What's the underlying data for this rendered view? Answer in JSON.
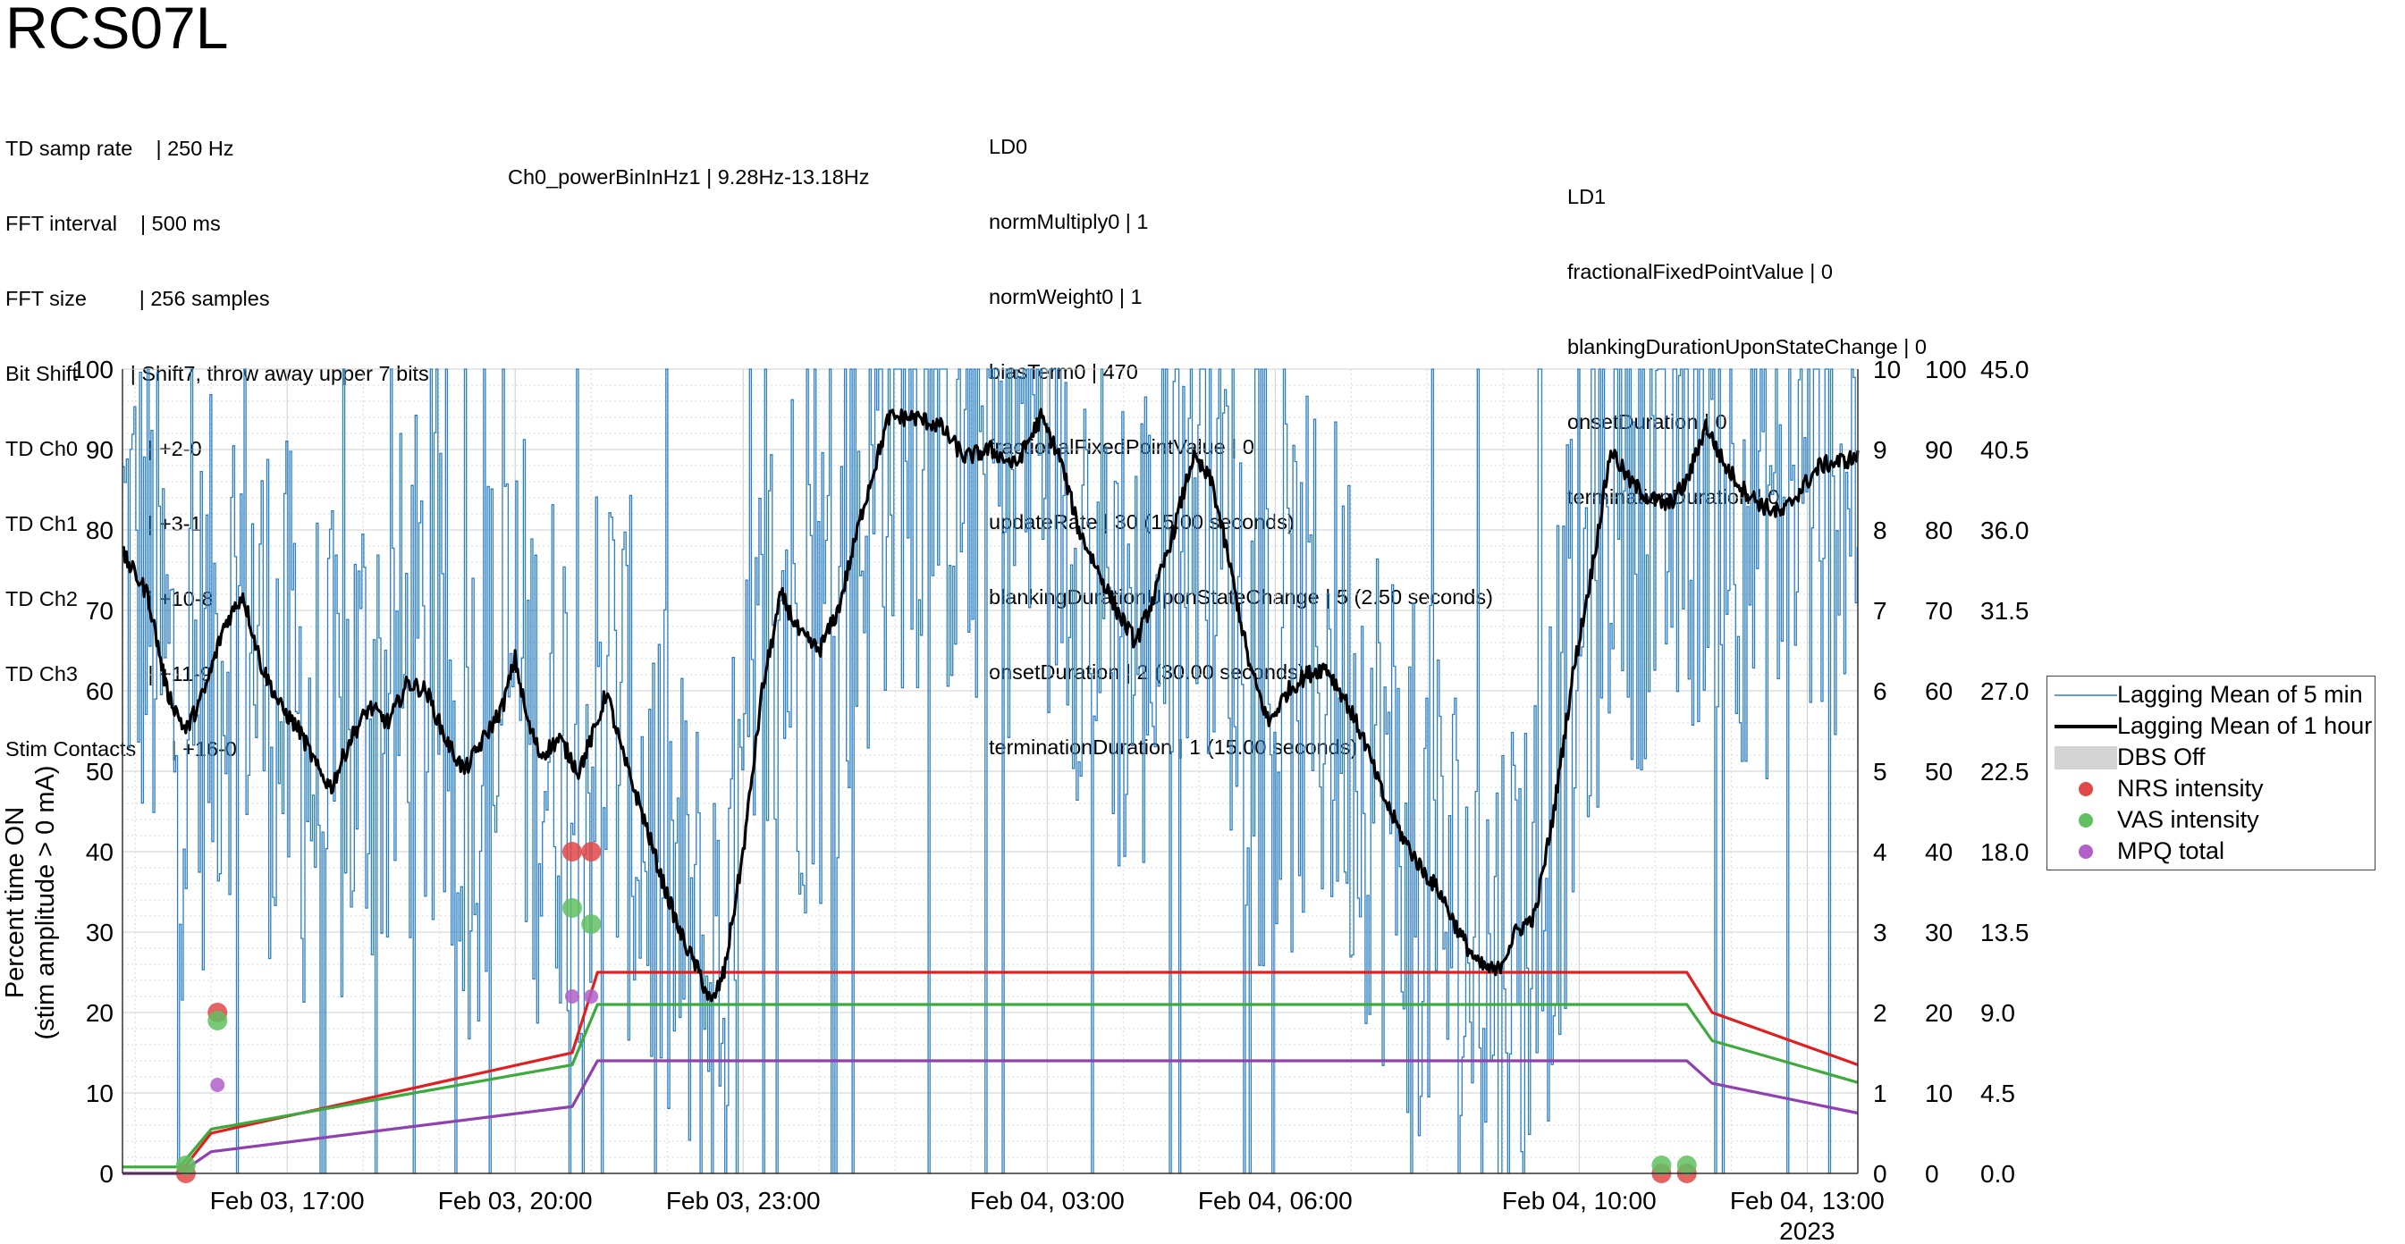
{
  "title": "RCS07L",
  "config_left": [
    "TD samp rate    | 250 Hz",
    "FFT interval    | 500 ms",
    "FFT size         | 256 samples",
    "Bit Shift         | Shift7, throw away upper 7 bits",
    "TD Ch0            | +2-0",
    "TD Ch1            | +3-1",
    "TD Ch2            | +10-8",
    "TD Ch3            | +11-9",
    "Stim Contacts      | +16-0"
  ],
  "config_mid": "Ch0_powerBinInHz1 | 9.28Hz-13.18Hz",
  "config_ld0": [
    "LD0",
    "normMultiply0 | 1",
    "normWeight0 | 1",
    "biasTerm0 | 470",
    "fractionalFixedPointValue | 0",
    "updateRate | 30 (15.00 seconds)",
    "blankingDurationUponStateChange | 5 (2.50 seconds)",
    "onsetDuration | 2 (30.00 seconds)",
    "terminationDuration | 1 (15.00 seconds)"
  ],
  "config_ld1": [
    "LD1",
    "fractionalFixedPointValue | 0",
    "blankingDurationUponStateChange | 0",
    "onsetDuration | 0",
    "terminationDuration | 0"
  ],
  "chart_data": {
    "type": "line",
    "ylabel": [
      "Percent time ON",
      "(stim amplitude > 0 mA)"
    ],
    "ylim": [
      0,
      100
    ],
    "y_ticks": [
      0,
      10,
      20,
      30,
      40,
      50,
      60,
      70,
      80,
      90,
      100
    ],
    "right_axes": [
      {
        "ylim": [
          0,
          10
        ],
        "ticks": [
          "0",
          "1",
          "2",
          "3",
          "4",
          "5",
          "6",
          "7",
          "8",
          "9",
          "10"
        ]
      },
      {
        "ylim": [
          0,
          100
        ],
        "ticks": [
          "0",
          "10",
          "20",
          "30",
          "40",
          "50",
          "60",
          "70",
          "80",
          "90",
          "100"
        ]
      },
      {
        "ylim": [
          0,
          45
        ],
        "ticks": [
          "0.0",
          "4.5",
          "9.0",
          "13.5",
          "18.0",
          "22.5",
          "27.0",
          "31.5",
          "36.0",
          "40.5",
          "45.0"
        ]
      }
    ],
    "xlim": [
      "2023-02-03 14:50",
      "2023-02-04 13:40"
    ],
    "x_ticks": [
      {
        "t": "2023-02-03 17:00",
        "label": "Feb 03, 17:00"
      },
      {
        "t": "2023-02-03 20:00",
        "label": "Feb 03, 20:00"
      },
      {
        "t": "2023-02-03 23:00",
        "label": "Feb 03, 23:00"
      },
      {
        "t": "2023-02-04 03:00",
        "label": "Feb 04, 03:00"
      },
      {
        "t": "2023-02-04 06:00",
        "label": "Feb 04, 06:00"
      },
      {
        "t": "2023-02-04 10:00",
        "label": "Feb 04, 10:00"
      },
      {
        "t": "2023-02-04 13:00",
        "label": "Feb 04, 13:00"
      }
    ],
    "year_label": "2023",
    "grid": true,
    "legend_position": "right",
    "series": [
      {
        "name": "Lagging Mean of 1 hour",
        "color": "#000000",
        "points": [
          [
            "2023-02-03 14:50",
            77
          ],
          [
            "2023-02-03 15:10",
            72
          ],
          [
            "2023-02-03 15:25",
            60
          ],
          [
            "2023-02-03 15:40",
            55
          ],
          [
            "2023-02-03 15:55",
            60
          ],
          [
            "2023-02-03 16:10",
            68
          ],
          [
            "2023-02-03 16:25",
            72
          ],
          [
            "2023-02-03 16:40",
            63
          ],
          [
            "2023-02-03 16:55",
            58
          ],
          [
            "2023-02-03 17:10",
            55
          ],
          [
            "2023-02-03 17:25",
            50
          ],
          [
            "2023-02-03 17:35",
            48
          ],
          [
            "2023-02-03 17:50",
            54
          ],
          [
            "2023-02-03 18:05",
            58
          ],
          [
            "2023-02-03 18:20",
            56
          ],
          [
            "2023-02-03 18:35",
            61
          ],
          [
            "2023-02-03 18:50",
            60
          ],
          [
            "2023-02-03 19:05",
            54
          ],
          [
            "2023-02-03 19:20",
            50
          ],
          [
            "2023-02-03 19:35",
            54
          ],
          [
            "2023-02-03 19:50",
            58
          ],
          [
            "2023-02-03 20:00",
            64
          ],
          [
            "2023-02-03 20:10",
            56
          ],
          [
            "2023-02-03 20:20",
            52
          ],
          [
            "2023-02-03 20:35",
            54
          ],
          [
            "2023-02-03 20:50",
            50
          ],
          [
            "2023-02-03 21:05",
            56
          ],
          [
            "2023-02-03 21:12",
            60
          ],
          [
            "2023-02-03 21:25",
            52
          ],
          [
            "2023-02-03 21:40",
            45
          ],
          [
            "2023-02-03 21:55",
            37
          ],
          [
            "2023-02-03 22:10",
            30
          ],
          [
            "2023-02-03 22:25",
            25
          ],
          [
            "2023-02-03 22:35",
            21
          ],
          [
            "2023-02-03 22:45",
            25
          ],
          [
            "2023-02-03 23:00",
            40
          ],
          [
            "2023-02-03 23:15",
            60
          ],
          [
            "2023-02-03 23:30",
            72
          ],
          [
            "2023-02-03 23:45",
            67
          ],
          [
            "2023-02-04 00:00",
            65
          ],
          [
            "2023-02-04 00:15",
            70
          ],
          [
            "2023-02-04 00:35",
            83
          ],
          [
            "2023-02-04 00:55",
            94
          ],
          [
            "2023-02-04 01:15",
            94
          ],
          [
            "2023-02-04 01:35",
            93
          ],
          [
            "2023-02-04 01:55",
            89
          ],
          [
            "2023-02-04 02:15",
            90
          ],
          [
            "2023-02-04 02:35",
            88
          ],
          [
            "2023-02-04 02:55",
            94
          ],
          [
            "2023-02-04 03:10",
            89
          ],
          [
            "2023-02-04 03:25",
            80
          ],
          [
            "2023-02-04 03:40",
            75
          ],
          [
            "2023-02-04 03:55",
            70
          ],
          [
            "2023-02-04 04:10",
            66
          ],
          [
            "2023-02-04 04:25",
            72
          ],
          [
            "2023-02-04 04:40",
            80
          ],
          [
            "2023-02-04 04:55",
            89
          ],
          [
            "2023-02-04 05:10",
            86
          ],
          [
            "2023-02-04 05:25",
            75
          ],
          [
            "2023-02-04 05:40",
            63
          ],
          [
            "2023-02-04 05:55",
            56
          ],
          [
            "2023-02-04 06:10",
            60
          ],
          [
            "2023-02-04 06:25",
            62
          ],
          [
            "2023-02-04 06:40",
            63
          ],
          [
            "2023-02-04 06:55",
            59
          ],
          [
            "2023-02-04 07:10",
            54
          ],
          [
            "2023-02-04 07:25",
            47
          ],
          [
            "2023-02-04 07:40",
            42
          ],
          [
            "2023-02-04 07:55",
            38
          ],
          [
            "2023-02-04 08:10",
            35
          ],
          [
            "2023-02-04 08:25",
            30
          ],
          [
            "2023-02-04 08:40",
            26
          ],
          [
            "2023-02-04 08:55",
            25
          ],
          [
            "2023-02-04 09:10",
            30
          ],
          [
            "2023-02-04 09:25",
            32
          ],
          [
            "2023-02-04 09:40",
            45
          ],
          [
            "2023-02-04 09:55",
            62
          ],
          [
            "2023-02-04 10:10",
            75
          ],
          [
            "2023-02-04 10:25",
            90
          ],
          [
            "2023-02-04 10:40",
            86
          ],
          [
            "2023-02-04 10:55",
            84
          ],
          [
            "2023-02-04 11:10",
            83
          ],
          [
            "2023-02-04 11:25",
            86
          ],
          [
            "2023-02-04 11:40",
            93
          ],
          [
            "2023-02-04 11:55",
            88
          ],
          [
            "2023-02-04 12:10",
            85
          ],
          [
            "2023-02-04 12:25",
            83
          ],
          [
            "2023-02-04 12:40",
            82
          ],
          [
            "2023-02-04 12:55",
            85
          ],
          [
            "2023-02-04 13:10",
            88
          ],
          [
            "2023-02-04 13:40",
            89
          ]
        ]
      },
      {
        "name": "NRS intensity",
        "color": "#e02020",
        "kind": "trend",
        "points": [
          [
            "2023-02-03 14:50",
            0
          ],
          [
            "2023-02-03 15:35",
            0
          ],
          [
            "2023-02-03 16:00",
            5
          ],
          [
            "2023-02-03 20:45",
            15
          ],
          [
            "2023-02-03 21:05",
            25
          ],
          [
            "2023-02-04 11:25",
            25
          ],
          [
            "2023-02-04 11:45",
            20
          ],
          [
            "2023-02-04 13:40",
            13.5
          ]
        ]
      },
      {
        "name": "VAS intensity",
        "color": "#3caa3c",
        "kind": "trend",
        "points": [
          [
            "2023-02-03 14:50",
            0.8
          ],
          [
            "2023-02-03 15:35",
            0.8
          ],
          [
            "2023-02-03 16:00",
            5.5
          ],
          [
            "2023-02-03 20:45",
            13.5
          ],
          [
            "2023-02-03 21:05",
            21
          ],
          [
            "2023-02-04 11:25",
            21
          ],
          [
            "2023-02-04 11:45",
            16.5
          ],
          [
            "2023-02-04 13:40",
            11.3
          ]
        ]
      },
      {
        "name": "MPQ total",
        "color": "#9040b0",
        "kind": "trend",
        "points": [
          [
            "2023-02-03 14:50",
            0
          ],
          [
            "2023-02-03 15:35",
            0
          ],
          [
            "2023-02-03 16:00",
            2.7
          ],
          [
            "2023-02-03 20:45",
            8.3
          ],
          [
            "2023-02-03 21:05",
            14
          ],
          [
            "2023-02-04 11:25",
            14
          ],
          [
            "2023-02-04 11:45",
            11.2
          ],
          [
            "2023-02-04 13:40",
            7.5
          ]
        ]
      }
    ],
    "markers": [
      {
        "series": "NRS intensity",
        "color": "#e04848",
        "points": [
          [
            "2023-02-03 15:40",
            0
          ],
          [
            "2023-02-03 16:05",
            20
          ],
          [
            "2023-02-03 20:45",
            40
          ],
          [
            "2023-02-03 21:00",
            40
          ],
          [
            "2023-02-04 11:05",
            0
          ],
          [
            "2023-02-04 11:25",
            0
          ]
        ]
      },
      {
        "series": "VAS intensity",
        "color": "#60c060",
        "points": [
          [
            "2023-02-03 15:40",
            1
          ],
          [
            "2023-02-03 16:05",
            19
          ],
          [
            "2023-02-03 20:45",
            33
          ],
          [
            "2023-02-03 21:00",
            31
          ],
          [
            "2023-02-04 11:05",
            1
          ],
          [
            "2023-02-04 11:25",
            1
          ]
        ]
      },
      {
        "series": "MPQ total",
        "color": "#b060c8",
        "points": [
          [
            "2023-02-03 16:05",
            11
          ],
          [
            "2023-02-03 20:45",
            22
          ],
          [
            "2023-02-03 21:00",
            22
          ]
        ]
      }
    ]
  },
  "legend": [
    {
      "label": "Lagging Mean of 5 min",
      "type": "thin-line",
      "color": "#2c7fc0"
    },
    {
      "label": "Lagging Mean of 1 hour",
      "type": "thick-line",
      "color": "#000000"
    },
    {
      "label": "DBS Off",
      "type": "patch",
      "color": "#d4d4d4"
    },
    {
      "label": "NRS intensity",
      "type": "dot",
      "color": "#e04848"
    },
    {
      "label": "VAS intensity",
      "type": "dot",
      "color": "#60c060"
    },
    {
      "label": "MPQ total",
      "type": "dot",
      "color": "#b060c8"
    }
  ]
}
